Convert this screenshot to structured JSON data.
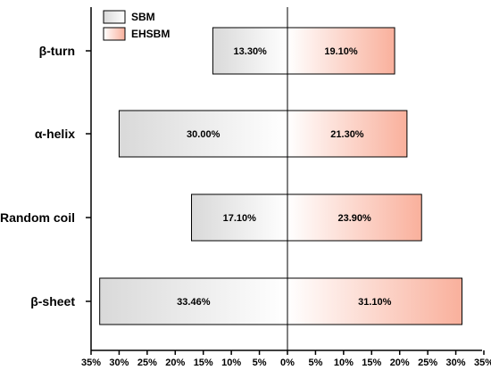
{
  "chart_data": {
    "type": "bar",
    "orientation": "horizontal-diverging",
    "categories": [
      "β-turn",
      "α-helix",
      "Random coil",
      "β-sheet"
    ],
    "series": [
      {
        "name": "SBM",
        "side": "left",
        "values": [
          13.3,
          30.0,
          17.1,
          33.46
        ],
        "labels": [
          "13.30%",
          "30.00%",
          "17.10%",
          "33.46%"
        ],
        "color_start": "#ffffff",
        "color_end": "#d9d9d9"
      },
      {
        "name": "EHSBM",
        "side": "right",
        "values": [
          19.1,
          21.3,
          23.9,
          31.1
        ],
        "labels": [
          "19.10%",
          "21.30%",
          "23.90%",
          "31.10%"
        ],
        "color_start": "#ffffff",
        "color_end": "#f9b09c"
      }
    ],
    "x_ticks": [
      "35%",
      "30%",
      "25%",
      "20%",
      "15%",
      "10%",
      "5%",
      "0%",
      "5%",
      "10%",
      "15%",
      "20%",
      "25%",
      "30%",
      "35%"
    ],
    "xlim": [
      -35,
      35
    ],
    "title": "",
    "xlabel": "",
    "ylabel": "",
    "grid": false,
    "legend_position": "top-left"
  }
}
